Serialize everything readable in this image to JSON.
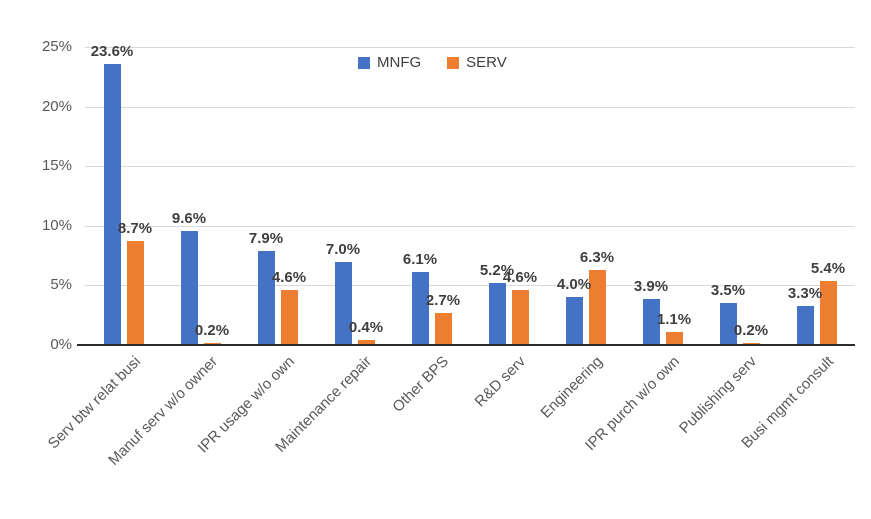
{
  "chart_data": {
    "type": "bar",
    "title": "",
    "xlabel": "",
    "ylabel": "",
    "grid": true,
    "legend_position": "top-center",
    "categories": [
      "Serv btw relat busi",
      "Manuf serv w/o owner",
      "IPR usage w/o own",
      "Maintenance repair",
      "Other BPS",
      "R&D serv",
      "Engineering",
      "IPR purch w/o own",
      "Publishing serv",
      "Busi mgmt consult"
    ],
    "series": [
      {
        "name": "MNFG",
        "color": "#4472C4",
        "values": [
          23.6,
          9.6,
          7.9,
          7.0,
          6.1,
          5.2,
          4.0,
          3.9,
          3.5,
          3.3
        ],
        "labels": [
          "23.6%",
          "9.6%",
          "7.9%",
          "7.0%",
          "6.1%",
          "5.2%",
          "4.0%",
          "3.9%",
          "3.5%",
          "3.3%"
        ]
      },
      {
        "name": "SERV",
        "color": "#ED7D31",
        "values": [
          8.7,
          0.2,
          4.6,
          0.4,
          2.7,
          4.6,
          6.3,
          1.1,
          0.2,
          5.4
        ],
        "labels": [
          "8.7%",
          "0.2%",
          "4.6%",
          "0.4%",
          "2.7%",
          "4.6%",
          "6.3%",
          "1.1%",
          "0.2%",
          "5.4%"
        ]
      }
    ],
    "y_axis": {
      "min": 0,
      "max": 25,
      "step": 5,
      "ticks": [
        "0%",
        "5%",
        "10%",
        "15%",
        "20%",
        "25%"
      ]
    }
  },
  "colors": {
    "grid": "#d9d9d9",
    "axis_line": "#2b2b2b",
    "tick_text": "#595959",
    "data_label_text": "#3f3f3f",
    "legend_text": "#404040",
    "background": "#ffffff"
  }
}
